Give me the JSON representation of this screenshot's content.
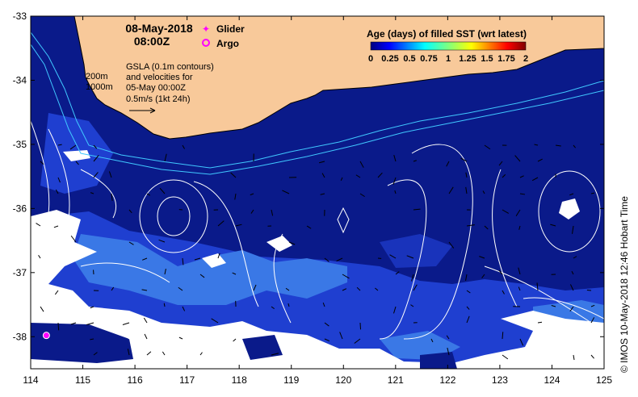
{
  "map": {
    "date": "08-May-2018",
    "time": "08:00Z",
    "legend_markers": [
      {
        "label": "Glider",
        "symbol": "glider-marker",
        "color": "#ff00ff"
      },
      {
        "label": "Argo",
        "symbol": "argo-marker",
        "color": "#ff00ff"
      }
    ],
    "depth_contours": [
      "200m",
      "1000m"
    ],
    "gsla_note": [
      "GSLA (0.1m contours)",
      "and velocities for",
      "05-May 00:00Z",
      "0.5m/s (1kt 24h)"
    ],
    "colorbar": {
      "title": "Age (days) of filled SST (wrt latest)",
      "ticks": [
        "0",
        "0.25",
        "0.5",
        "0.75",
        "1",
        "1.25",
        "1.5",
        "1.75",
        "2"
      ],
      "range": [
        0,
        2
      ]
    },
    "x_ticks": [
      "114",
      "115",
      "116",
      "117",
      "118",
      "119",
      "120",
      "121",
      "122",
      "123",
      "124",
      "125"
    ],
    "y_ticks": [
      "-33",
      "-34",
      "-35",
      "-36",
      "-37",
      "-38"
    ],
    "argo_position": {
      "lon": 114.3,
      "lat": -37.98
    },
    "credit": "© IMOS 10-May-2018 12:46 Hobart Time",
    "colors": {
      "ocean_deep": "#0a1a8a",
      "ocean_mid": "#1f3fd0",
      "ocean_light": "#3a78e6",
      "land": "#f8c99a",
      "missing": "#ffffff",
      "coast_current": "#40c8ff",
      "marker": "#ff00ff"
    }
  }
}
